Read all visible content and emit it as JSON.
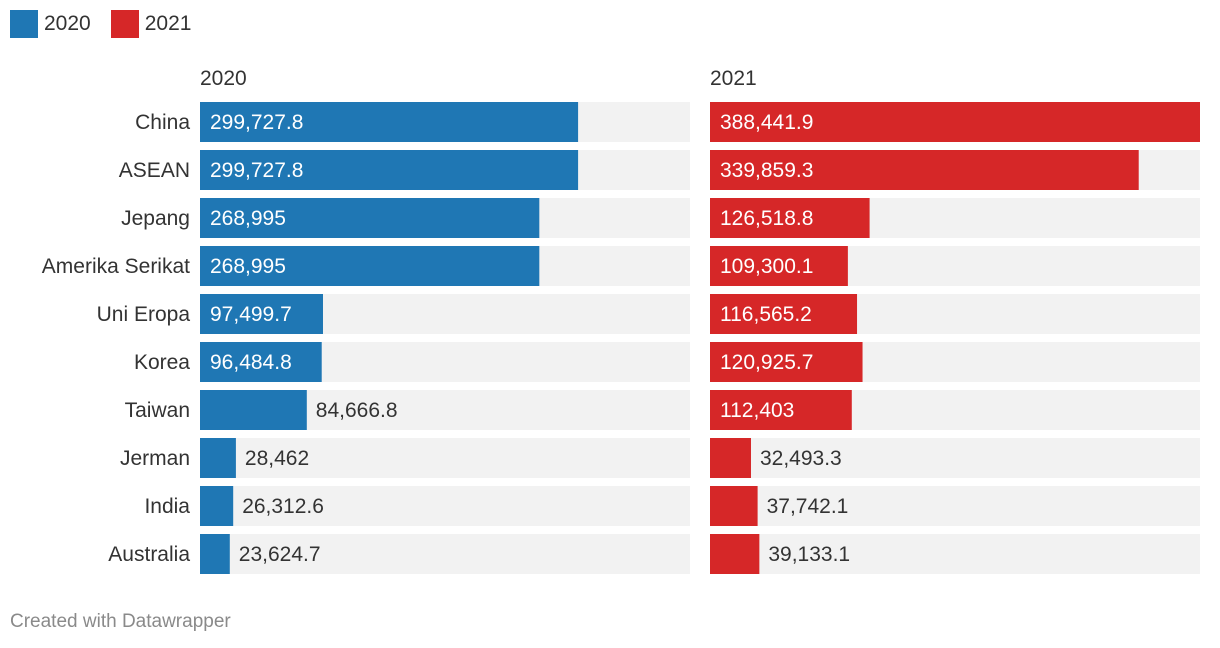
{
  "chart_data": {
    "type": "bar",
    "layout": "small-multiples-horizontal",
    "categories": [
      "China",
      "ASEAN",
      "Jepang",
      "Amerika Serikat",
      "Uni Eropa",
      "Korea",
      "Taiwan",
      "Jerman",
      "India",
      "Australia"
    ],
    "series": [
      {
        "name": "2020",
        "color": "#1f77b4",
        "values": [
          299727.8,
          299727.8,
          268995,
          268995,
          97499.7,
          96484.8,
          84666.8,
          28462,
          26312.6,
          23624.7
        ],
        "labels": [
          "299,727.8",
          "299,727.8",
          "268,995",
          "268,995",
          "97,499.7",
          "96,484.8",
          "84,666.8",
          "28,462",
          "26,312.6",
          "23,624.7"
        ]
      },
      {
        "name": "2021",
        "color": "#d62728",
        "values": [
          388441.9,
          339859.3,
          126518.8,
          109300.1,
          116565.2,
          120925.7,
          112403,
          32493.3,
          37742.1,
          39133.1
        ],
        "labels": [
          "388,441.9",
          "339,859.3",
          "126,518.8",
          "109,300.1",
          "116,565.2",
          "120,925.7",
          "112,403",
          "32,493.3",
          "37,742.1",
          "39,133.1"
        ]
      }
    ],
    "xlim": [
      0,
      388441.9
    ],
    "legend": "top-left"
  },
  "legend": [
    {
      "label": "2020",
      "color": "#1f77b4"
    },
    {
      "label": "2021",
      "color": "#d62728"
    }
  ],
  "footer": "Created with Datawrapper"
}
